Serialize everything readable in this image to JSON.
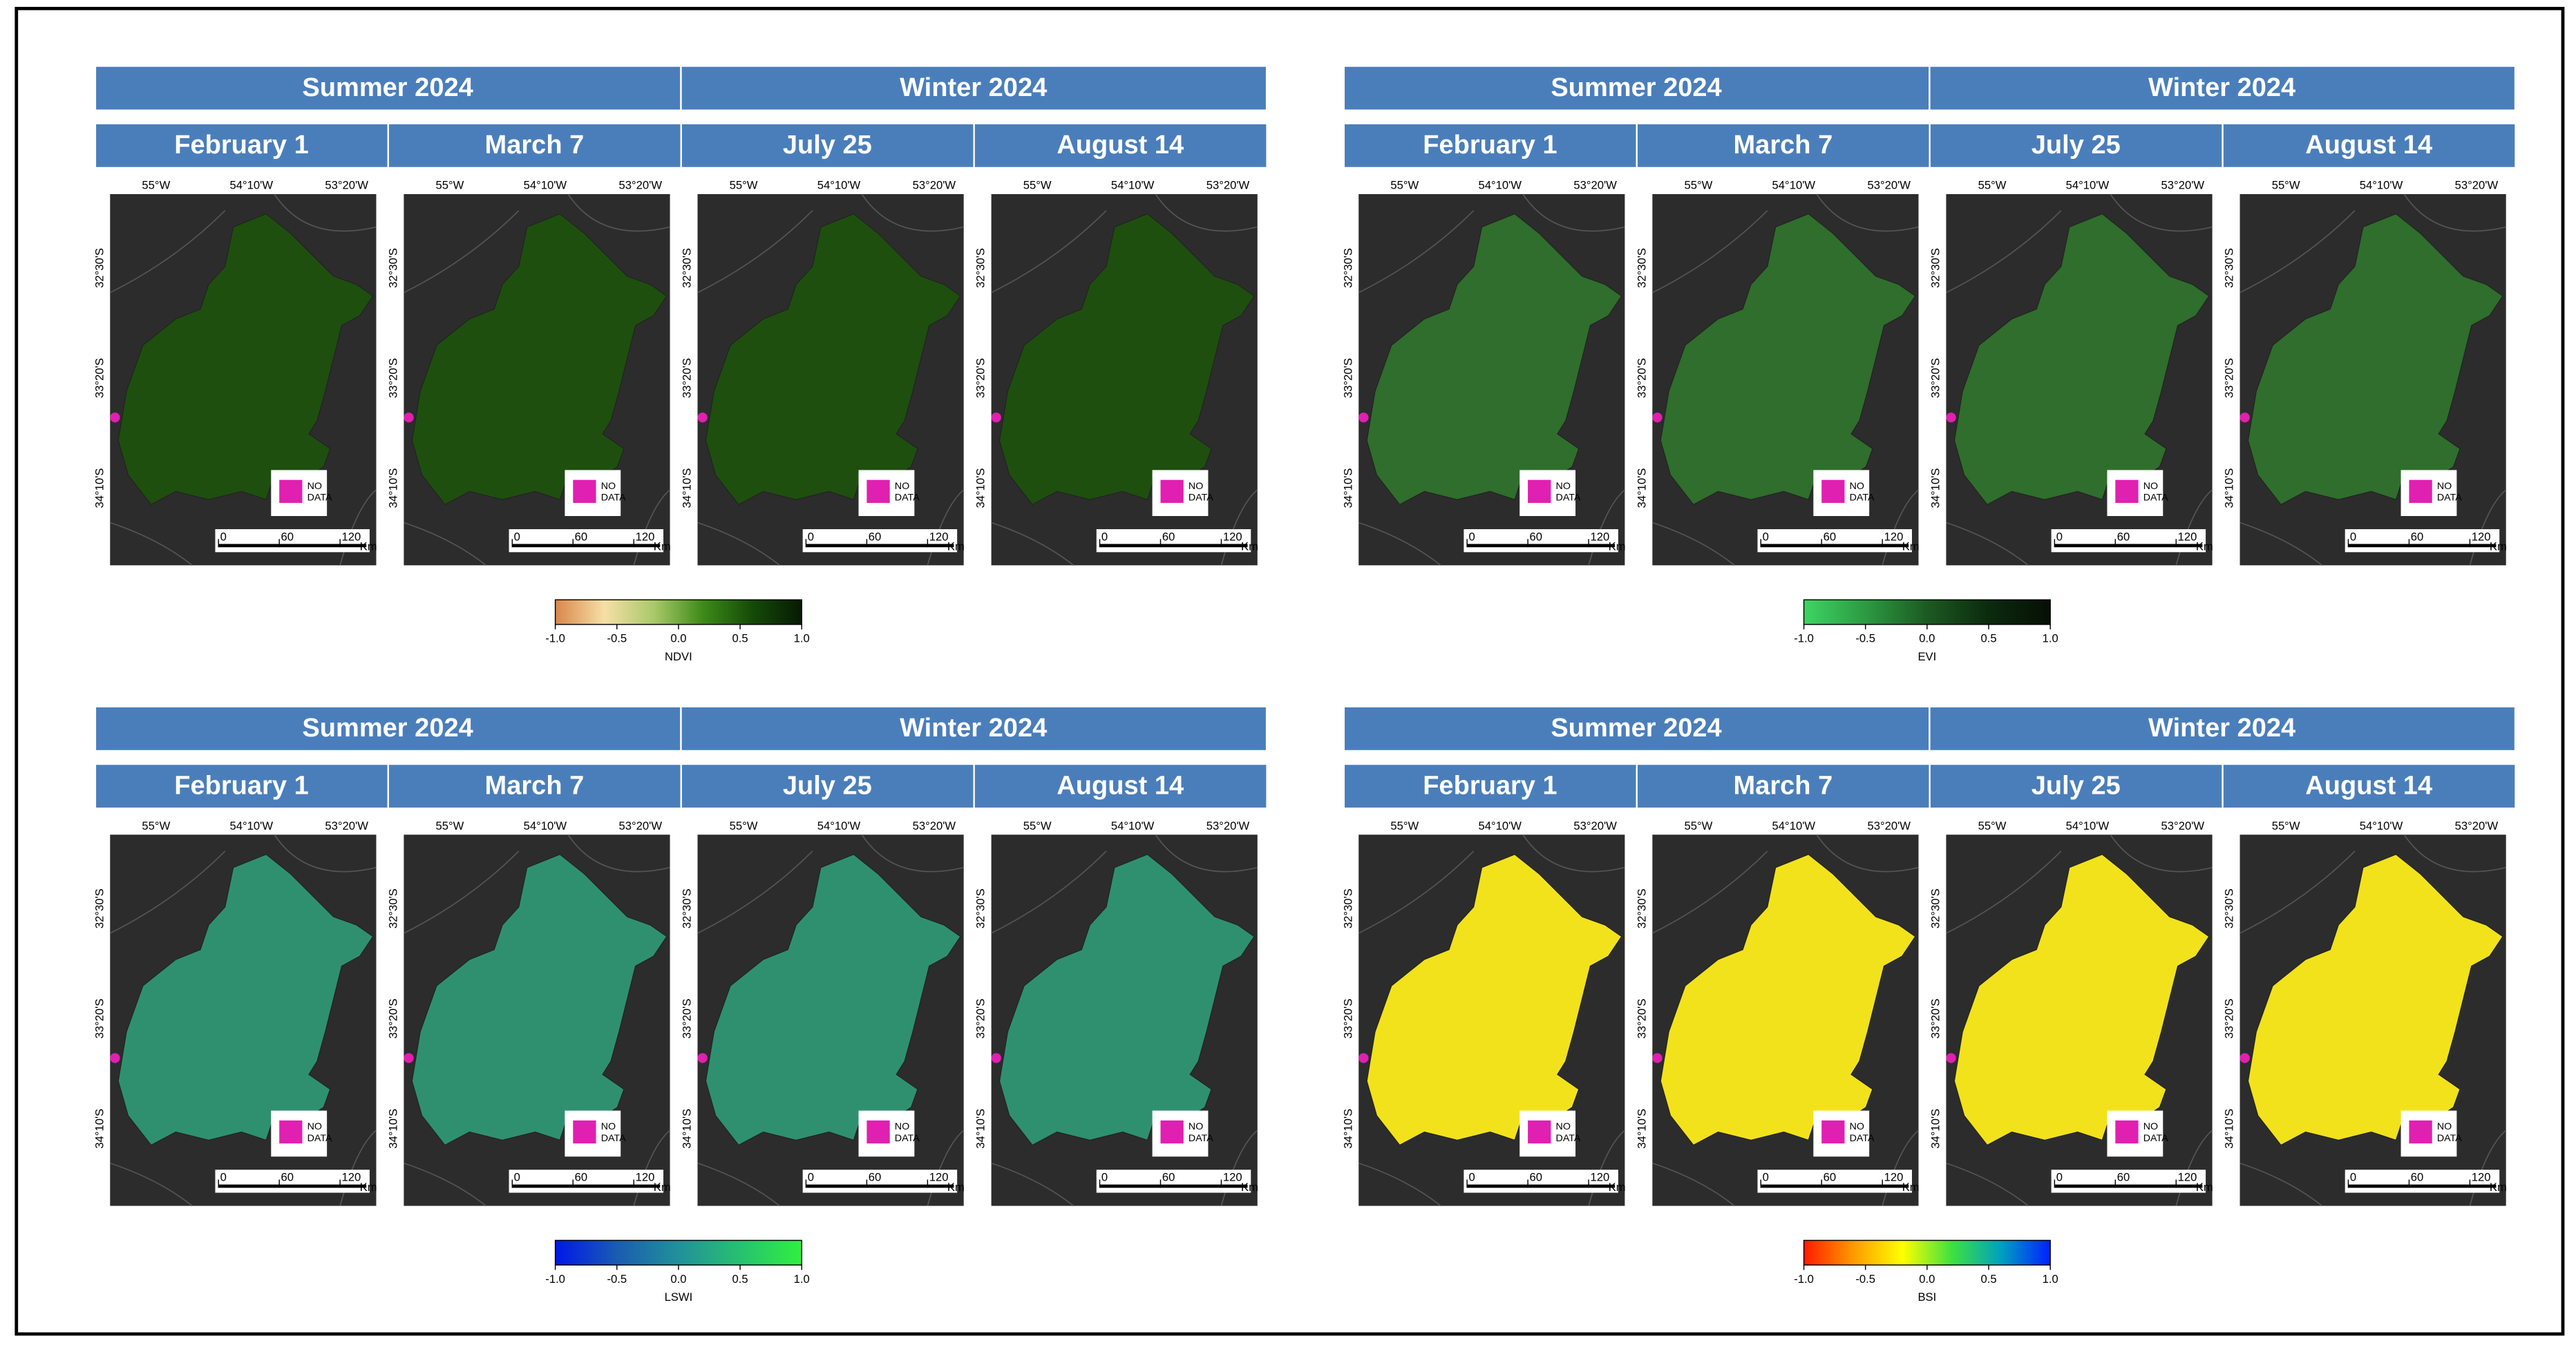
{
  "panels": [
    {
      "index_label": "NDVI",
      "seasons": [
        "Summer 2024",
        "Winter 2024"
      ],
      "dates": [
        "February 1",
        "March 7",
        "July 25",
        "August 14"
      ],
      "map_color": "#1e4f0f",
      "colorbar": {
        "colors": [
          "#d9874a",
          "#f6dfa6",
          "#a9c96a",
          "#3d8a18",
          "#154a08",
          "#061a03"
        ],
        "range": [
          -1,
          1
        ],
        "ticks": [
          {
            "value": -1,
            "label": "-1.0"
          },
          -0.5,
          {
            "value": 0,
            "label": "0.0"
          },
          0.5,
          {
            "value": 1,
            "label": "1.0"
          }
        ]
      }
    },
    {
      "index_label": "EVI",
      "seasons": [
        "Summer 2024",
        "Winter 2024"
      ],
      "dates": [
        "February 1",
        "March 7",
        "July 25",
        "August 14"
      ],
      "map_color": "#2f6e2c",
      "colorbar": {
        "colors": [
          "#3fd464",
          "#2c9a42",
          "#1c5a22",
          "#0c2a0e",
          "#060f05"
        ],
        "range": [
          -1,
          1
        ],
        "ticks": [
          {
            "value": -1,
            "label": "-1.0"
          },
          -0.5,
          {
            "value": 0,
            "label": "0.0"
          },
          0.5,
          {
            "value": 1,
            "label": "1.0"
          }
        ]
      }
    },
    {
      "index_label": "LSWI",
      "seasons": [
        "Summer 2024",
        "Winter 2024"
      ],
      "dates": [
        "February 1",
        "March 7",
        "July 25",
        "August 14"
      ],
      "map_color": "#2f9070",
      "colorbar": {
        "colors": [
          "#0018e8",
          "#1a5cb0",
          "#22909a",
          "#28c070",
          "#30f040"
        ],
        "range": [
          -1,
          1
        ],
        "ticks": [
          {
            "value": -1,
            "label": "-1.0"
          },
          -0.5,
          {
            "value": 0,
            "label": "0.0"
          },
          0.5,
          {
            "value": 1,
            "label": "1.0"
          }
        ]
      }
    },
    {
      "index_label": "BSI",
      "seasons": [
        "Summer 2024",
        "Winter 2024"
      ],
      "dates": [
        "February 1",
        "March 7",
        "July 25",
        "August 14"
      ],
      "map_color": "#f2e21c",
      "colorbar": {
        "colors": [
          "#ff1a00",
          "#ff9a00",
          "#ffff00",
          "#40e040",
          "#00a0c0",
          "#0020ff"
        ],
        "range": [
          -1,
          1
        ],
        "ticks": [
          {
            "value": -1,
            "label": "-1.0"
          },
          -0.5,
          {
            "value": 0,
            "label": "0.0"
          },
          0.5,
          {
            "value": 1,
            "label": "1.0"
          }
        ]
      }
    }
  ],
  "map_labels": {
    "longitudes": [
      "55°W",
      "54°10'W",
      "53°20'W"
    ],
    "latitudes": [
      "32°30'S",
      "33°20'S",
      "34°10'S"
    ],
    "scale_range": [
      0,
      120
    ],
    "scale_ticks": [
      0,
      60,
      120
    ],
    "scale_unit": "Km",
    "no_data": [
      "NO",
      "DATA"
    ]
  }
}
